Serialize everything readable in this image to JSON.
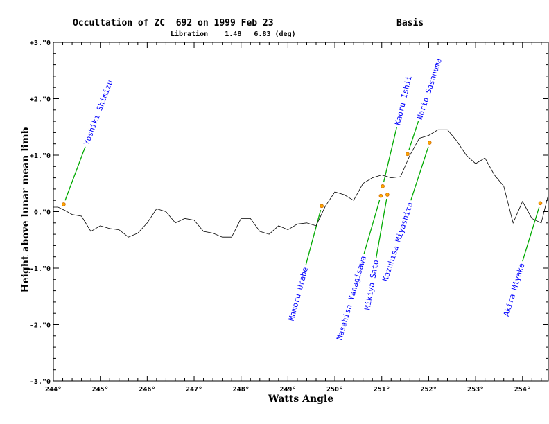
{
  "header": {
    "title": "Occultation of ZC  692 on 1999 Feb 23",
    "subtitle": "Libration    1.48   6.83 (deg)",
    "basis": "Basis"
  },
  "chart_data": {
    "type": "line",
    "xlabel": "Watts Angle",
    "ylabel": "Height above lunar mean limb",
    "xlim": [
      244,
      254.55
    ],
    "ylim": [
      -3,
      3
    ],
    "x_ticks": [
      {
        "value": 244,
        "label": "244°"
      },
      {
        "value": 245,
        "label": "245°"
      },
      {
        "value": 246,
        "label": "246°"
      },
      {
        "value": 247,
        "label": "247°"
      },
      {
        "value": 248,
        "label": "248°"
      },
      {
        "value": 249,
        "label": "249°"
      },
      {
        "value": 250,
        "label": "250°"
      },
      {
        "value": 251,
        "label": "251°"
      },
      {
        "value": 252,
        "label": "252°"
      },
      {
        "value": 253,
        "label": "253°"
      },
      {
        "value": 254,
        "label": "254°"
      }
    ],
    "y_ticks": [
      {
        "value": 3,
        "label": "+3.\"0"
      },
      {
        "value": 2,
        "label": "+2.\"0"
      },
      {
        "value": 1,
        "label": "+1.\"0"
      },
      {
        "value": 0,
        "label": "0.\"0"
      },
      {
        "value": -1,
        "label": "-1.\"0"
      },
      {
        "value": -2,
        "label": "-2.\"0"
      },
      {
        "value": -3,
        "label": "-3.\"0"
      }
    ],
    "colors": {
      "profile": "#000000",
      "leader": "#00aa00",
      "label": "#0000ff",
      "event": "#ffaa00",
      "event_edge": "#cc6600"
    },
    "profile": {
      "x": [
        244.0,
        244.1,
        244.25,
        244.4,
        244.6,
        244.8,
        245.0,
        245.2,
        245.4,
        245.6,
        245.8,
        246.0,
        246.2,
        246.4,
        246.6,
        246.8,
        247.0,
        247.2,
        247.4,
        247.6,
        247.8,
        248.0,
        248.2,
        248.4,
        248.6,
        248.8,
        249.0,
        249.2,
        249.4,
        249.6,
        249.8,
        250.0,
        250.2,
        250.4,
        250.6,
        250.8,
        251.0,
        251.2,
        251.4,
        251.6,
        251.8,
        252.0,
        252.2,
        252.4,
        252.6,
        252.8,
        253.0,
        253.2,
        253.4,
        253.6,
        253.8,
        254.0,
        254.2,
        254.4,
        254.55
      ],
      "y": [
        0.08,
        0.08,
        0.02,
        -0.05,
        -0.08,
        -0.35,
        -0.25,
        -0.3,
        -0.32,
        -0.45,
        -0.38,
        -0.2,
        0.05,
        0.0,
        -0.2,
        -0.12,
        -0.15,
        -0.35,
        -0.38,
        -0.45,
        -0.45,
        -0.12,
        -0.12,
        -0.35,
        -0.4,
        -0.25,
        -0.32,
        -0.22,
        -0.2,
        -0.25,
        0.1,
        0.35,
        0.3,
        0.2,
        0.5,
        0.6,
        0.65,
        0.6,
        0.62,
        1.0,
        1.3,
        1.35,
        1.45,
        1.45,
        1.25,
        1.0,
        0.85,
        0.95,
        0.65,
        0.45,
        -0.2,
        0.18,
        -0.12,
        -0.2,
        0.3
      ]
    },
    "observers": [
      {
        "name": "Yoshiki Shimizu",
        "event": {
          "x": 244.22,
          "y": 0.13
        },
        "leader_end": {
          "x": 244.68,
          "y": 1.15
        },
        "side": "above"
      },
      {
        "name": "Mamoru Urabe",
        "event": {
          "x": 249.72,
          "y": 0.1
        },
        "leader_end": {
          "x": 249.38,
          "y": -0.95
        },
        "side": "below"
      },
      {
        "name": "Masahisa Yanagisawa",
        "event": {
          "x": 250.98,
          "y": 0.28
        },
        "leader_end": {
          "x": 250.62,
          "y": -0.75
        },
        "side": "below"
      },
      {
        "name": "Mikiya Sato",
        "event": {
          "x": 251.12,
          "y": 0.3
        },
        "leader_end": {
          "x": 250.88,
          "y": -0.82
        },
        "side": "below"
      },
      {
        "name": "Kazuhisa Miyashita",
        "event": {
          "x": 252.02,
          "y": 1.22
        },
        "leader_end": {
          "x": 251.62,
          "y": 0.2
        },
        "side": "below"
      },
      {
        "name": "Kaoru Ishii",
        "event": {
          "x": 251.02,
          "y": 0.45
        },
        "leader_end": {
          "x": 251.32,
          "y": 1.5
        },
        "side": "above"
      },
      {
        "name": "Norio Sasanuma",
        "event": {
          "x": 251.55,
          "y": 1.02
        },
        "leader_end": {
          "x": 251.78,
          "y": 1.6
        },
        "side": "above"
      },
      {
        "name": "Akira Miyake",
        "event": {
          "x": 254.38,
          "y": 0.15
        },
        "leader_end": {
          "x": 254.0,
          "y": -0.88
        },
        "side": "below"
      }
    ]
  }
}
